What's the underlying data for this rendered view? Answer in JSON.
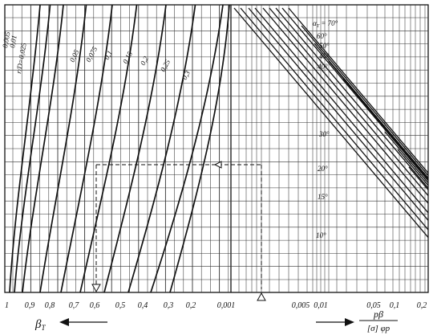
{
  "chart_data": [
    {
      "type": "line",
      "panel": "left",
      "title": "",
      "x_axis": {
        "label": "β_T",
        "ticks": [
          "1",
          "0,9",
          "0,8",
          "0,7",
          "0,6",
          "0,5",
          "0,4",
          "0,3",
          "0,2",
          "0,001"
        ],
        "direction": "decreasing to the right",
        "arrow": "points left"
      },
      "grid": true,
      "series_label_prefix": "r/D =",
      "series": [
        {
          "name": "0,005"
        },
        {
          "name": "0,01"
        },
        {
          "name": "r/D=0,025"
        },
        {
          "name": "0,05"
        },
        {
          "name": "0,075"
        },
        {
          "name": "0,1"
        },
        {
          "name": "0,15"
        },
        {
          "name": "0,2"
        },
        {
          "name": "0,25"
        },
        {
          "name": "0,3"
        }
      ],
      "guide": {
        "description": "dashed reading path with arrows",
        "x_read": "≈0,58"
      }
    },
    {
      "type": "line",
      "panel": "right",
      "x_axis": {
        "label_numerator": "pβ",
        "label_denominator": "[σ] φp",
        "ticks": [
          "0,001",
          "0,005",
          "0,01",
          "0,05",
          "0,1",
          "0,2"
        ],
        "scale": "log",
        "arrow": "points right"
      },
      "grid": true,
      "series_label_prefix": "α_T =",
      "series": [
        {
          "name": "70°"
        },
        {
          "name": "60°"
        },
        {
          "name": "50°"
        },
        {
          "name": "45°"
        },
        {
          "name": "40°"
        },
        {
          "name": "30°"
        },
        {
          "name": "20°"
        },
        {
          "name": "15°"
        },
        {
          "name": "10°"
        }
      ]
    }
  ],
  "labels": {
    "alpha_prefix": "α",
    "alpha_sub": "T",
    "beta_axis": "β",
    "beta_sub": "T",
    "rd_label": "r/D=0,025"
  }
}
